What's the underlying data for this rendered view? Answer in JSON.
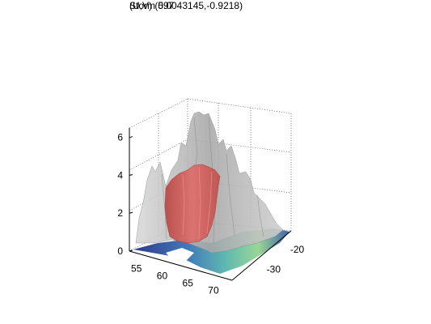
{
  "chart_data": {
    "type": "surface3d",
    "title": "Storm 597",
    "subtitle": "(U,V) (0.0043145,-0.9218)",
    "xlabel": "",
    "ylabel": "",
    "zlabel": "",
    "x_ticks": [
      "55",
      "60",
      "65",
      "70"
    ],
    "y_ticks": [
      "-20",
      "-30"
    ],
    "z_ticks": [
      "0",
      "2",
      "4",
      "6"
    ],
    "zlim": [
      0,
      6.5
    ],
    "grid": true,
    "layers": [
      {
        "name": "",
        "kind": "translucent isosurface",
        "color": "#c8c8c8"
      },
      {
        "name": "",
        "kind": "core isosurface",
        "color": "#e05a5a"
      },
      {
        "name": "",
        "kind": "base colormap slice",
        "colors": [
          "#1a237e",
          "#2b6cb0",
          "#4fb3a8",
          "#8fd18a"
        ]
      }
    ]
  }
}
